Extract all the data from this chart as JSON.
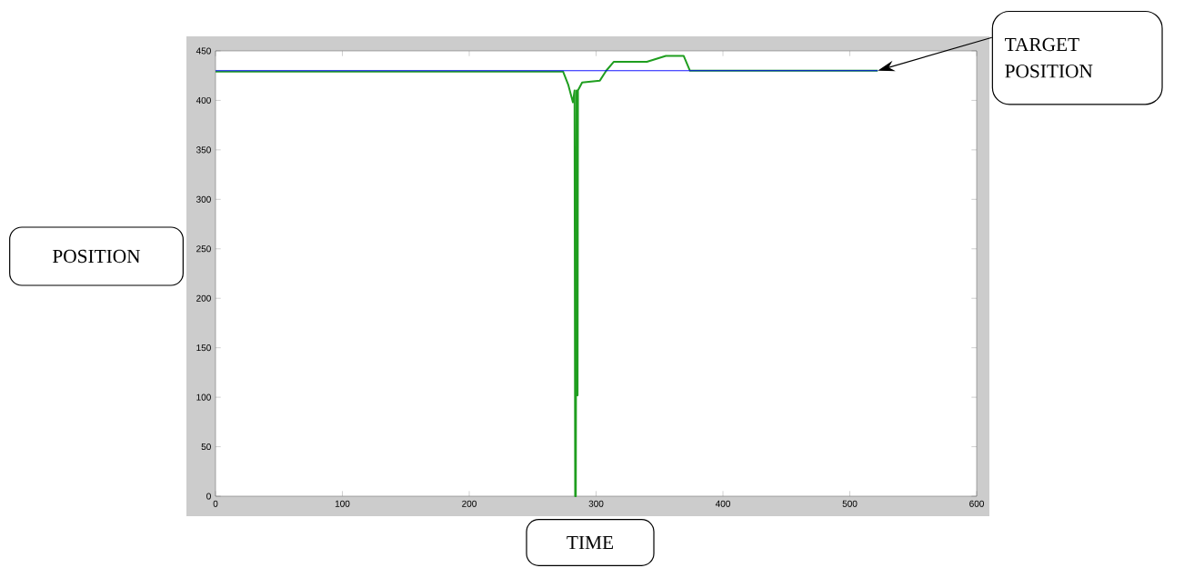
{
  "chart_data": {
    "type": "line",
    "xlabel": "TIME",
    "ylabel": "POSITION",
    "annotations": [
      "TARGET POSITION"
    ],
    "xlim": [
      0,
      600
    ],
    "ylim": [
      0,
      450
    ],
    "xticks": [
      0,
      100,
      200,
      300,
      400,
      500,
      600
    ],
    "yticks": [
      0,
      50,
      100,
      150,
      200,
      250,
      300,
      350,
      400,
      450
    ],
    "series": [
      {
        "color": "#0000ff",
        "x": [
          0,
          522
        ],
        "values": [
          430,
          430
        ]
      },
      {
        "color": "#1f9e1f",
        "x": [
          0,
          100,
          200,
          274,
          278,
          281.7,
          283,
          283.5,
          284,
          284.6,
          285.1,
          285.4,
          285.7,
          289,
          303,
          308,
          314,
          340,
          355,
          369,
          374,
          522
        ],
        "values": [
          429,
          429,
          429,
          429,
          416,
          398,
          410,
          0,
          0,
          410,
          308,
          102,
          410,
          418,
          420,
          430,
          439,
          439,
          445,
          445,
          430,
          430
        ]
      }
    ]
  }
}
